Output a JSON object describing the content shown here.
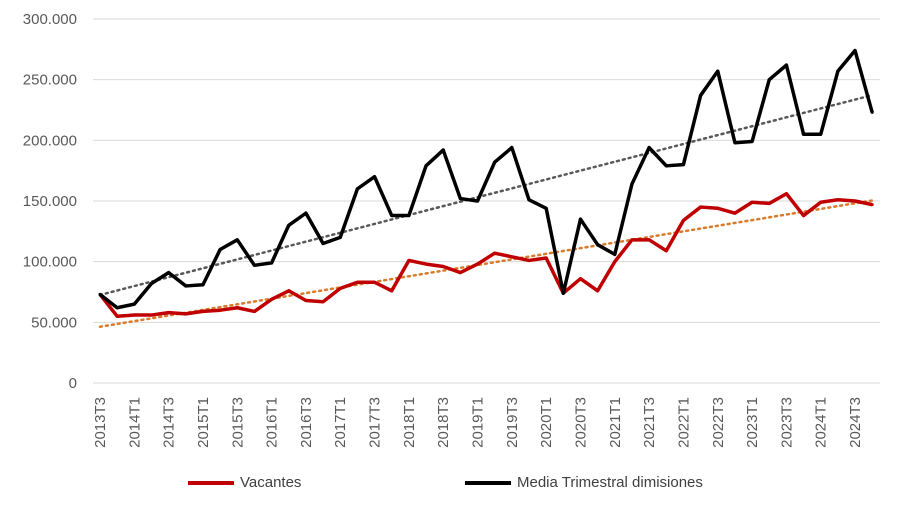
{
  "chart_data": {
    "type": "line",
    "title": "",
    "xlabel": "",
    "ylabel": "",
    "ylim": [
      0,
      300000
    ],
    "yticks": [
      0,
      50000,
      100000,
      150000,
      200000,
      250000,
      300000
    ],
    "ytick_labels": [
      "0",
      "50.000",
      "100.000",
      "150.000",
      "200.000",
      "250.000",
      "300.000"
    ],
    "grid": true,
    "legend_position": "bottom",
    "x": [
      "2013T3",
      "2013T4",
      "2014T1",
      "2014T2",
      "2014T3",
      "2014T4",
      "2015T1",
      "2015T2",
      "2015T3",
      "2015T4",
      "2016T1",
      "2016T2",
      "2016T3",
      "2016T4",
      "2017T1",
      "2017T2",
      "2017T3",
      "2017T4",
      "2018T1",
      "2018T2",
      "2018T3",
      "2018T4",
      "2019T1",
      "2019T2",
      "2019T3",
      "2019T4",
      "2020T1",
      "2020T2",
      "2020T3",
      "2020T4",
      "2021T1",
      "2021T2",
      "2021T3",
      "2021T4",
      "2022T1",
      "2022T2",
      "2022T3",
      "2022T4",
      "2023T1",
      "2023T2",
      "2023T3",
      "2023T4",
      "2024T1",
      "2024T2",
      "2024T3",
      "2024T4"
    ],
    "xtick_labels": [
      "2013T3",
      "2014T1",
      "2014T3",
      "2015T1",
      "2015T3",
      "2016T1",
      "2016T3",
      "2017T1",
      "2017T3",
      "2018T1",
      "2018T3",
      "2019T1",
      "2019T3",
      "2020T1",
      "2020T3",
      "2021T1",
      "2021T3",
      "2022T1",
      "2022T3",
      "2023T1",
      "2023T3",
      "2024T1",
      "2024T3"
    ],
    "series": [
      {
        "name": "Vacantes",
        "color": "#C00000",
        "trendline": "linear",
        "trend_color": "#D97B2B",
        "values": [
          73000,
          55000,
          56000,
          56000,
          58000,
          57000,
          59000,
          60000,
          62000,
          59000,
          69000,
          76000,
          68000,
          67000,
          78000,
          83000,
          83000,
          76000,
          101000,
          98000,
          96000,
          91000,
          98000,
          107000,
          104000,
          101000,
          103000,
          74000,
          86000,
          76000,
          100000,
          118000,
          118000,
          109000,
          134000,
          145000,
          144000,
          140000,
          149000,
          148000,
          156000,
          138000,
          149000,
          151000,
          150000,
          147000
        ]
      },
      {
        "name": "Media Trimestral dimisiones",
        "color": "#000000",
        "trendline": "linear",
        "trend_color": "#595959",
        "values": [
          73000,
          62000,
          65000,
          82000,
          91000,
          80000,
          81000,
          110000,
          118000,
          97000,
          99000,
          130000,
          140000,
          115000,
          120000,
          160000,
          170000,
          138000,
          138000,
          179000,
          192000,
          152000,
          150000,
          182000,
          194000,
          151000,
          144000,
          74000,
          135000,
          114000,
          106000,
          164000,
          194000,
          179000,
          180000,
          237000,
          257000,
          198000,
          199000,
          250000,
          262000,
          205000,
          205000,
          257000,
          274000,
          223000
        ]
      }
    ]
  }
}
